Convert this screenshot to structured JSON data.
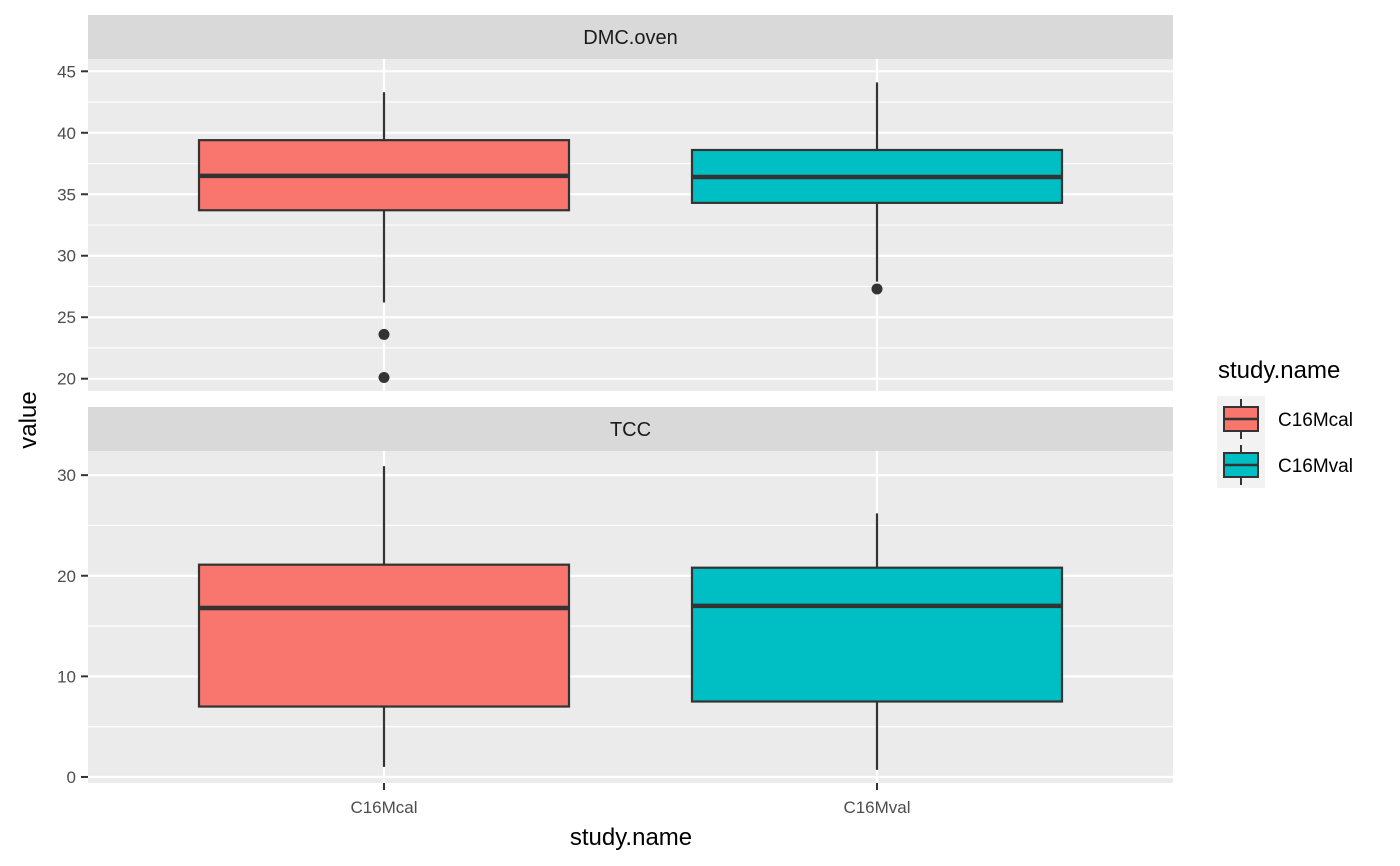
{
  "chart_data": {
    "type": "boxplot",
    "xlabel": "study.name",
    "ylabel": "value",
    "categories": [
      "C16Mcal",
      "C16Mval"
    ],
    "legend": {
      "title": "study.name",
      "placement": "right",
      "entries": [
        {
          "label": "C16Mcal",
          "color": "#F8766D"
        },
        {
          "label": "C16Mval",
          "color": "#00BFC4"
        }
      ]
    },
    "grid": true,
    "facets": [
      {
        "name": "DMC.oven",
        "ylim": [
          19,
          46
        ],
        "yticks": [
          20,
          25,
          30,
          35,
          40,
          45
        ],
        "boxes": [
          {
            "category": "C16Mcal",
            "whisker_low": 26.2,
            "q1": 33.7,
            "median": 36.5,
            "q3": 39.4,
            "whisker_high": 43.3,
            "outliers": [
              23.6,
              20.1
            ]
          },
          {
            "category": "C16Mval",
            "whisker_low": 27.9,
            "q1": 34.3,
            "median": 36.4,
            "q3": 38.6,
            "whisker_high": 44.1,
            "outliers": [
              27.3
            ]
          }
        ]
      },
      {
        "name": "TCC",
        "ylim": [
          -0.6,
          32.4
        ],
        "yticks": [
          0,
          10,
          20,
          30
        ],
        "boxes": [
          {
            "category": "C16Mcal",
            "whisker_low": 1.0,
            "q1": 7.0,
            "median": 16.8,
            "q3": 21.1,
            "whisker_high": 30.9,
            "outliers": []
          },
          {
            "category": "C16Mval",
            "whisker_low": 0.7,
            "q1": 7.5,
            "median": 17.0,
            "q3": 20.8,
            "whisker_high": 26.2,
            "outliers": []
          }
        ]
      }
    ]
  }
}
